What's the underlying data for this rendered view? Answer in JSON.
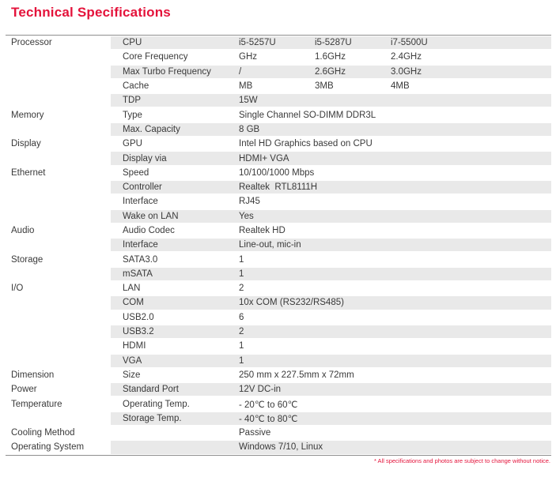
{
  "page": {
    "title": "Technical Specifications",
    "footnote": "* All specifications and photos are subject to change without notice."
  },
  "colors": {
    "accent": "#e4133b",
    "row_shade": "#e9e9e9",
    "rule_line": "#8f8f8f",
    "text": "#3a3a3a"
  },
  "table": {
    "rows": [
      {
        "category": "Processor",
        "label": "CPU",
        "values": [
          "i5-5257U",
          "i5-5287U",
          "i7-5500U"
        ],
        "shaded": true
      },
      {
        "category": "",
        "label": "Core Frequency",
        "values": [
          "GHz",
          "1.6GHz",
          "2.4GHz"
        ],
        "shaded": false
      },
      {
        "category": "",
        "label": "Max Turbo Frequency",
        "values": [
          "/",
          "2.6GHz",
          "3.0GHz"
        ],
        "shaded": true
      },
      {
        "category": "",
        "label": "Cache",
        "values": [
          "MB",
          "3MB",
          "4MB"
        ],
        "shaded": false
      },
      {
        "category": "",
        "label": "TDP",
        "values": [
          "15W"
        ],
        "shaded": true
      },
      {
        "category": "Memory",
        "label": "Type",
        "values": [
          "Single Channel SO-DIMM DDR3L"
        ],
        "shaded": false
      },
      {
        "category": "",
        "label": "Max. Capacity",
        "values": [
          "8 GB"
        ],
        "shaded": true
      },
      {
        "category": "Display",
        "label": "GPU",
        "values": [
          "Intel HD Graphics based on CPU"
        ],
        "shaded": false
      },
      {
        "category": "",
        "label": "Display via",
        "values": [
          "HDMI+ VGA"
        ],
        "shaded": true
      },
      {
        "category": "Ethernet",
        "label": "Speed",
        "values": [
          "10/100/1000 Mbps"
        ],
        "shaded": false
      },
      {
        "category": "",
        "label": "Controller",
        "values": [
          "Realtek  RTL8111H"
        ],
        "shaded": true
      },
      {
        "category": "",
        "label": "Interface",
        "values": [
          "RJ45"
        ],
        "shaded": false
      },
      {
        "category": "",
        "label": "Wake on LAN",
        "values": [
          "Yes"
        ],
        "shaded": true
      },
      {
        "category": "Audio",
        "label": "Audio Codec",
        "values": [
          "Realtek HD"
        ],
        "shaded": false
      },
      {
        "category": "",
        "label": "Interface",
        "values": [
          "Line-out, mic-in"
        ],
        "shaded": true
      },
      {
        "category": "Storage",
        "label": "SATA3.0",
        "values": [
          "1"
        ],
        "shaded": false
      },
      {
        "category": "",
        "label": "mSATA",
        "values": [
          "1"
        ],
        "shaded": true
      },
      {
        "category": "I/O",
        "label": "LAN",
        "values": [
          "2"
        ],
        "shaded": false
      },
      {
        "category": "",
        "label": "COM",
        "values": [
          "10x COM (RS232/RS485)"
        ],
        "shaded": true
      },
      {
        "category": "",
        "label": "USB2.0",
        "values": [
          "6"
        ],
        "shaded": false
      },
      {
        "category": "",
        "label": "USB3.2",
        "values": [
          "2"
        ],
        "shaded": true
      },
      {
        "category": "",
        "label": "HDMI",
        "values": [
          "1"
        ],
        "shaded": false
      },
      {
        "category": "",
        "label": "VGA",
        "values": [
          "1"
        ],
        "shaded": true
      },
      {
        "category": "Dimension",
        "label": "Size",
        "values": [
          "250 mm x 227.5mm x 72mm"
        ],
        "shaded": false
      },
      {
        "category": "Power",
        "label": "Standard Port",
        "values": [
          "12V DC-in"
        ],
        "shaded": true
      },
      {
        "category": "Temperature",
        "label": "Operating Temp.",
        "values": [
          "- 20℃ to 60℃"
        ],
        "shaded": false
      },
      {
        "category": "",
        "label": "Storage Temp.",
        "values": [
          "- 40℃ to 80℃"
        ],
        "shaded": true
      },
      {
        "category": "Cooling Method",
        "label": "",
        "values": [
          "Passive"
        ],
        "shaded": false
      },
      {
        "category": "Operating System",
        "label": "",
        "values": [
          "Windows 7/10, Linux"
        ],
        "shaded": true
      }
    ]
  }
}
